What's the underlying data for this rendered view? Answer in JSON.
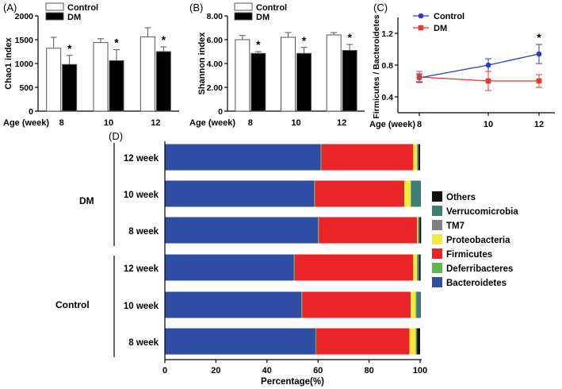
{
  "chart_data": [
    {
      "panel": "(A)",
      "type": "bar",
      "ylabel": "Chao1 index",
      "xlabel": "Age (week)",
      "categories": [
        "8",
        "10",
        "12"
      ],
      "ylim": [
        0,
        2000
      ],
      "yticks": [
        "0",
        "500",
        "1000",
        "1500",
        "2000"
      ],
      "legend": [
        "Control",
        "DM"
      ],
      "series": [
        {
          "name": "Control",
          "values": [
            1320,
            1440,
            1560
          ],
          "err": [
            230,
            80,
            190
          ]
        },
        {
          "name": "DM",
          "values": [
            980,
            1060,
            1250
          ],
          "err": [
            190,
            230,
            100
          ]
        }
      ],
      "significance": [
        "*",
        "*",
        "*"
      ]
    },
    {
      "panel": "(B)",
      "type": "bar",
      "ylabel": "Shannon index",
      "xlabel": "Age (week)",
      "categories": [
        "8",
        "10",
        "12"
      ],
      "ylim": [
        0,
        8
      ],
      "yticks": [
        "0",
        "2.00",
        "4.00",
        "6.00",
        "8.00"
      ],
      "legend": [
        "Control",
        "DM"
      ],
      "series": [
        {
          "name": "Control",
          "values": [
            6.0,
            6.2,
            6.4
          ],
          "err": [
            0.35,
            0.4,
            0.2
          ]
        },
        {
          "name": "DM",
          "values": [
            4.85,
            4.85,
            5.1
          ],
          "err": [
            0.15,
            0.5,
            0.5
          ]
        }
      ],
      "significance": [
        "*",
        "*",
        "*"
      ]
    },
    {
      "panel": "(C)",
      "type": "line",
      "ylabel": "Firmicutes / Bacteroidetes",
      "xlabel": "Age (week)",
      "categories": [
        "8",
        "10",
        "12"
      ],
      "ylim": [
        0.2,
        1.4
      ],
      "yticks": [
        "0.4",
        "0.8",
        "1.2"
      ],
      "series": [
        {
          "name": "Control",
          "color": "#2a3cc7",
          "values": [
            0.64,
            0.8,
            0.94
          ],
          "err": [
            0.05,
            0.08,
            0.12
          ]
        },
        {
          "name": "DM",
          "color": "#e8392f",
          "values": [
            0.65,
            0.6,
            0.6
          ],
          "err": [
            0.07,
            0.12,
            0.08
          ]
        }
      ],
      "significance": [
        "",
        "",
        "*"
      ]
    },
    {
      "panel": "(D)",
      "type": "bar",
      "orientation": "horizontal-stacked",
      "xlabel": "Percentage(%)",
      "xlim": [
        0,
        100
      ],
      "xticks": [
        "0",
        "20",
        "40",
        "60",
        "80",
        "100"
      ],
      "groups": [
        "DM",
        "Control"
      ],
      "categories": [
        "12 week",
        "10 week",
        "8 week",
        "12 week",
        "10 week",
        "8 week"
      ],
      "legend_order": [
        "Others",
        "Verrucomicrobia",
        "TM7",
        "Proteobacteria",
        "Firmicutes",
        "Deferribacteres",
        "Bacteroidetes"
      ],
      "colors": {
        "Bacteroidetes": "#2e4da3",
        "Deferribacteres": "#5cb84a",
        "Firmicutes": "#e8262a",
        "Proteobacteria": "#f2ea3c",
        "TM7": "#7f7f7f",
        "Verrucomicrobia": "#3a8078",
        "Others": "#111111"
      },
      "series": [
        {
          "name": "Bacteroidetes",
          "values": [
            61,
            58.5,
            60,
            50.5,
            53.5,
            59
          ]
        },
        {
          "name": "Deferribacteres",
          "values": [
            0.3,
            0.3,
            0.3,
            0.3,
            0.3,
            0.3
          ]
        },
        {
          "name": "Firmicutes",
          "values": [
            36,
            35,
            38.5,
            46.5,
            42.5,
            36.5
          ]
        },
        {
          "name": "Proteobacteria",
          "values": [
            1.5,
            2.5,
            0.4,
            1.5,
            2,
            2.5
          ]
        },
        {
          "name": "TM7",
          "values": [
            0.3,
            0.2,
            0.2,
            0.3,
            0.2,
            0.3
          ]
        },
        {
          "name": "Verrucomicrobia",
          "values": [
            0.3,
            3.5,
            0.4,
            0.5,
            1.5,
            0.2
          ]
        },
        {
          "name": "Others",
          "values": [
            0.6,
            0.2,
            0.6,
            0.6,
            0.2,
            1.2
          ]
        }
      ]
    }
  ]
}
